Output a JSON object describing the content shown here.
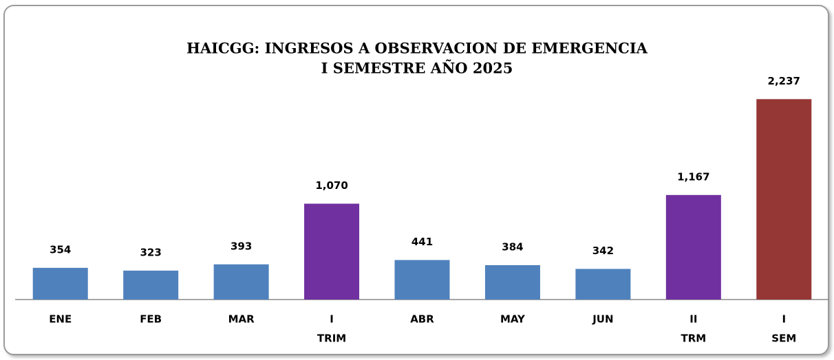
{
  "chart_data": {
    "type": "bar",
    "title": "HAICGG: INGRESOS A OBSERVACION DE EMERGENCIA",
    "subtitle": "I  SEMESTRE AÑO 2025",
    "categories": [
      "ENE",
      "FEB",
      "MAR",
      [
        "I",
        "TRIM"
      ],
      "ABR",
      "MAY",
      "JUN",
      [
        "II",
        "TRM"
      ],
      [
        "I",
        "SEM"
      ]
    ],
    "values": [
      354,
      323,
      393,
      1070,
      441,
      384,
      342,
      1167,
      2237
    ],
    "value_labels": [
      "354",
      "323",
      "393",
      "1,070",
      "441",
      "384",
      "342",
      "1,167",
      "2,237"
    ],
    "colors": [
      "#4f81bd",
      "#4f81bd",
      "#4f81bd",
      "#7030a0",
      "#4f81bd",
      "#4f81bd",
      "#4f81bd",
      "#7030a0",
      "#953735"
    ],
    "ylim": [
      0,
      2500
    ],
    "grid": false
  }
}
